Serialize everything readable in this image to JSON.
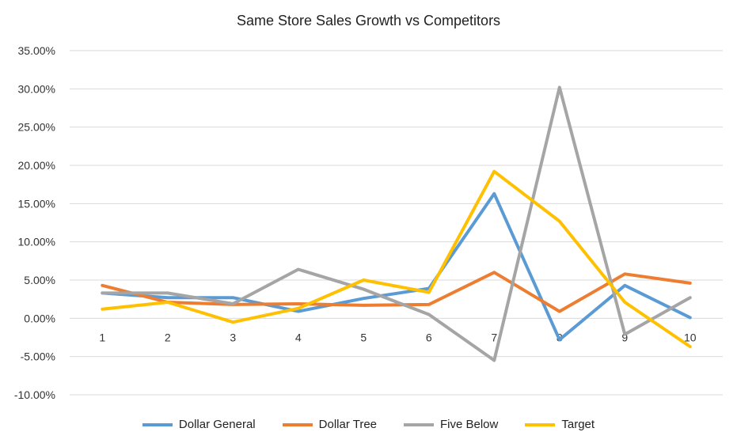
{
  "chart_data": {
    "type": "line",
    "title": "Same Store Sales Growth vs Competitors",
    "xlabel": "",
    "ylabel": "",
    "categories": [
      "1",
      "2",
      "3",
      "4",
      "5",
      "6",
      "7",
      "8",
      "9",
      "10"
    ],
    "ylim": [
      -10,
      35
    ],
    "y_tick_step": 5,
    "y_ticks": [
      "35.00%",
      "30.00%",
      "25.00%",
      "20.00%",
      "15.00%",
      "10.00%",
      "5.00%",
      "0.00%",
      "-5.00%",
      "-10.00%"
    ],
    "grid": true,
    "legend_position": "bottom",
    "series": [
      {
        "name": "Dollar General",
        "color": "#5B9BD5",
        "values": [
          3.3,
          2.7,
          2.7,
          0.9,
          2.6,
          3.9,
          16.3,
          -2.8,
          4.3,
          0.1
        ]
      },
      {
        "name": "Dollar Tree",
        "color": "#ED7D31",
        "values": [
          4.3,
          2.1,
          1.8,
          1.9,
          1.7,
          1.8,
          6.0,
          0.9,
          5.8,
          4.6
        ]
      },
      {
        "name": "Five Below",
        "color": "#A5A5A5",
        "values": [
          3.3,
          3.3,
          1.9,
          6.4,
          3.8,
          0.5,
          -5.5,
          30.2,
          -2.1,
          2.7
        ]
      },
      {
        "name": "Target",
        "color": "#FFC000",
        "values": [
          1.2,
          2.1,
          -0.5,
          1.3,
          5.0,
          3.4,
          19.2,
          12.7,
          2.1,
          -3.7
        ]
      }
    ]
  }
}
